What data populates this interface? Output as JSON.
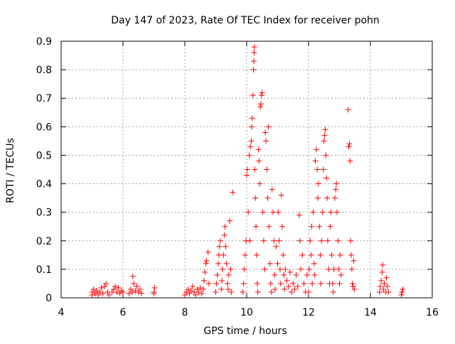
{
  "chart_data": {
    "type": "scatter",
    "title": "Day 147 of 2023, Rate Of TEC Index for receiver pohn",
    "xlabel": "GPS time / hours",
    "ylabel": "ROTI / TECUs",
    "xlim": [
      4,
      16
    ],
    "ylim": [
      0,
      0.9
    ],
    "xticks": [
      4,
      6,
      8,
      10,
      12,
      14,
      16
    ],
    "yticks": [
      0,
      0.1,
      0.2,
      0.3,
      0.4,
      0.5,
      0.6,
      0.7,
      0.8,
      0.9
    ],
    "grid": true,
    "marker": "+",
    "color": "#ff0000",
    "series": [
      {
        "points": [
          [
            5.0,
            0.01
          ],
          [
            5.0,
            0.02
          ],
          [
            5.05,
            0.03
          ],
          [
            5.1,
            0.015
          ],
          [
            5.15,
            0.025
          ],
          [
            5.2,
            0.01
          ],
          [
            5.25,
            0.02
          ],
          [
            5.3,
            0.035
          ],
          [
            5.35,
            0.015
          ],
          [
            5.4,
            0.04
          ],
          [
            5.45,
            0.05
          ],
          [
            5.5,
            0.02
          ],
          [
            5.55,
            0.01
          ],
          [
            5.65,
            0.02
          ],
          [
            5.7,
            0.03
          ],
          [
            5.75,
            0.04
          ],
          [
            5.8,
            0.02
          ],
          [
            5.85,
            0.035
          ],
          [
            5.9,
            0.015
          ],
          [
            5.95,
            0.025
          ],
          [
            6.0,
            0.02
          ],
          [
            6.2,
            0.015
          ],
          [
            6.25,
            0.03
          ],
          [
            6.3,
            0.02
          ],
          [
            6.32,
            0.075
          ],
          [
            6.35,
            0.05
          ],
          [
            6.4,
            0.025
          ],
          [
            6.45,
            0.04
          ],
          [
            6.5,
            0.02
          ],
          [
            6.55,
            0.03
          ],
          [
            6.6,
            0.015
          ],
          [
            7.0,
            0.015
          ],
          [
            7.0,
            0.02
          ],
          [
            7.02,
            0.035
          ],
          [
            8.0,
            0.01
          ],
          [
            8.05,
            0.02
          ],
          [
            8.1,
            0.03
          ],
          [
            8.15,
            0.015
          ],
          [
            8.2,
            0.025
          ],
          [
            8.25,
            0.04
          ],
          [
            8.3,
            0.02
          ],
          [
            8.35,
            0.01
          ],
          [
            8.4,
            0.03
          ],
          [
            8.45,
            0.02
          ],
          [
            8.5,
            0.035
          ],
          [
            8.55,
            0.015
          ],
          [
            8.6,
            0.03
          ],
          [
            8.62,
            0.06
          ],
          [
            8.65,
            0.09
          ],
          [
            8.68,
            0.12
          ],
          [
            8.7,
            0.13
          ],
          [
            8.75,
            0.16
          ],
          [
            8.78,
            0.05
          ],
          [
            9.0,
            0.02
          ],
          [
            9.02,
            0.05
          ],
          [
            9.05,
            0.08
          ],
          [
            9.08,
            0.12
          ],
          [
            9.1,
            0.15
          ],
          [
            9.12,
            0.18
          ],
          [
            9.15,
            0.2
          ],
          [
            9.18,
            0.03
          ],
          [
            9.2,
            0.06
          ],
          [
            9.22,
            0.1
          ],
          [
            9.25,
            0.15
          ],
          [
            9.28,
            0.22
          ],
          [
            9.3,
            0.25
          ],
          [
            9.32,
            0.18
          ],
          [
            9.35,
            0.12
          ],
          [
            9.38,
            0.05
          ],
          [
            9.4,
            0.03
          ],
          [
            9.42,
            0.08
          ],
          [
            9.45,
            0.27
          ],
          [
            9.48,
            0.1
          ],
          [
            9.5,
            0.02
          ],
          [
            9.55,
            0.37
          ],
          [
            9.88,
            0.02
          ],
          [
            9.9,
            0.05
          ],
          [
            9.92,
            0.1
          ],
          [
            9.95,
            0.15
          ],
          [
            9.98,
            0.2
          ],
          [
            10.0,
            0.43
          ],
          [
            10.02,
            0.45
          ],
          [
            10.05,
            0.3
          ],
          [
            10.08,
            0.5
          ],
          [
            10.1,
            0.2
          ],
          [
            10.12,
            0.53
          ],
          [
            10.15,
            0.55
          ],
          [
            10.16,
            0.6
          ],
          [
            10.18,
            0.63
          ],
          [
            10.2,
            0.71
          ],
          [
            10.22,
            0.8
          ],
          [
            10.23,
            0.83
          ],
          [
            10.24,
            0.86
          ],
          [
            10.25,
            0.88
          ],
          [
            10.26,
            0.45
          ],
          [
            10.28,
            0.35
          ],
          [
            10.3,
            0.25
          ],
          [
            10.32,
            0.15
          ],
          [
            10.34,
            0.05
          ],
          [
            10.36,
            0.02
          ],
          [
            10.38,
            0.52
          ],
          [
            10.4,
            0.48
          ],
          [
            10.42,
            0.4
          ],
          [
            10.44,
            0.67
          ],
          [
            10.46,
            0.68
          ],
          [
            10.48,
            0.71
          ],
          [
            10.5,
            0.72
          ],
          [
            10.52,
            0.3
          ],
          [
            10.55,
            0.2
          ],
          [
            10.58,
            0.1
          ],
          [
            10.6,
            0.58
          ],
          [
            10.62,
            0.55
          ],
          [
            10.65,
            0.45
          ],
          [
            10.68,
            0.35
          ],
          [
            10.7,
            0.6
          ],
          [
            10.72,
            0.25
          ],
          [
            10.75,
            0.12
          ],
          [
            10.78,
            0.05
          ],
          [
            10.8,
            0.02
          ],
          [
            10.82,
            0.38
          ],
          [
            10.85,
            0.3
          ],
          [
            10.88,
            0.2
          ],
          [
            10.9,
            0.08
          ],
          [
            10.92,
            0.03
          ],
          [
            10.95,
            0.18
          ],
          [
            11.0,
            0.12
          ],
          [
            11.02,
            0.3
          ],
          [
            11.05,
            0.2
          ],
          [
            11.08,
            0.1
          ],
          [
            11.1,
            0.05
          ],
          [
            11.12,
            0.36
          ],
          [
            11.15,
            0.25
          ],
          [
            11.18,
            0.15
          ],
          [
            11.2,
            0.08
          ],
          [
            11.22,
            0.03
          ],
          [
            11.25,
            0.1
          ],
          [
            11.3,
            0.06
          ],
          [
            11.35,
            0.04
          ],
          [
            11.4,
            0.09
          ],
          [
            11.45,
            0.02
          ],
          [
            11.5,
            0.05
          ],
          [
            11.55,
            0.03
          ],
          [
            11.6,
            0.08
          ],
          [
            11.65,
            0.04
          ],
          [
            11.7,
            0.29
          ],
          [
            11.72,
            0.2
          ],
          [
            11.75,
            0.1
          ],
          [
            11.8,
            0.15
          ],
          [
            11.85,
            0.05
          ],
          [
            11.9,
            0.02
          ],
          [
            11.95,
            0.08
          ],
          [
            12.0,
            0.02
          ],
          [
            12.02,
            0.1
          ],
          [
            12.05,
            0.2
          ],
          [
            12.08,
            0.15
          ],
          [
            12.1,
            0.25
          ],
          [
            12.12,
            0.05
          ],
          [
            12.15,
            0.3
          ],
          [
            12.18,
            0.12
          ],
          [
            12.2,
            0.08
          ],
          [
            12.22,
            0.48
          ],
          [
            12.25,
            0.52
          ],
          [
            12.28,
            0.45
          ],
          [
            12.3,
            0.35
          ],
          [
            12.32,
            0.4
          ],
          [
            12.35,
            0.25
          ],
          [
            12.38,
            0.15
          ],
          [
            12.4,
            0.05
          ],
          [
            12.42,
            0.2
          ],
          [
            12.45,
            0.3
          ],
          [
            12.48,
            0.45
          ],
          [
            12.5,
            0.55
          ],
          [
            12.52,
            0.57
          ],
          [
            12.54,
            0.59
          ],
          [
            12.56,
            0.5
          ],
          [
            12.58,
            0.42
          ],
          [
            12.6,
            0.35
          ],
          [
            12.62,
            0.2
          ],
          [
            12.65,
            0.1
          ],
          [
            12.68,
            0.05
          ],
          [
            12.7,
            0.25
          ],
          [
            12.72,
            0.3
          ],
          [
            12.75,
            0.15
          ],
          [
            12.78,
            0.05
          ],
          [
            12.8,
            0.02
          ],
          [
            12.82,
            0.1
          ],
          [
            12.85,
            0.35
          ],
          [
            12.88,
            0.38
          ],
          [
            12.9,
            0.4
          ],
          [
            12.92,
            0.3
          ],
          [
            12.95,
            0.2
          ],
          [
            12.98,
            0.1
          ],
          [
            13.0,
            0.05
          ],
          [
            13.02,
            0.15
          ],
          [
            13.05,
            0.08
          ],
          [
            13.28,
            0.66
          ],
          [
            13.3,
            0.53
          ],
          [
            13.32,
            0.54
          ],
          [
            13.34,
            0.48
          ],
          [
            13.36,
            0.2
          ],
          [
            13.38,
            0.15
          ],
          [
            13.4,
            0.1
          ],
          [
            13.42,
            0.05
          ],
          [
            13.44,
            0.04
          ],
          [
            13.46,
            0.13
          ],
          [
            13.48,
            0.03
          ],
          [
            14.3,
            0.02
          ],
          [
            14.32,
            0.04
          ],
          [
            14.35,
            0.06
          ],
          [
            14.38,
            0.09
          ],
          [
            14.4,
            0.115
          ],
          [
            14.42,
            0.03
          ],
          [
            14.45,
            0.05
          ],
          [
            14.5,
            0.02
          ],
          [
            14.52,
            0.07
          ],
          [
            14.55,
            0.04
          ],
          [
            14.58,
            0.02
          ],
          [
            15.0,
            0.01
          ],
          [
            15.02,
            0.02
          ],
          [
            15.05,
            0.03
          ]
        ]
      }
    ]
  }
}
